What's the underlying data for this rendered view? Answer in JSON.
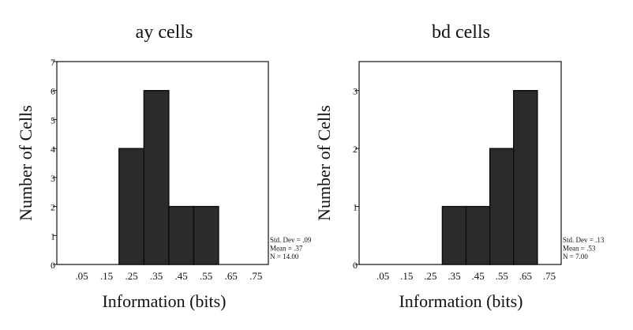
{
  "chart_data": [
    {
      "type": "bar",
      "title": "ay cells",
      "xlabel": "Information (bits)",
      "ylabel": "Number of Cells",
      "categories": [
        ".05",
        ".15",
        ".25",
        ".35",
        ".45",
        ".55",
        ".65",
        ".75"
      ],
      "values": [
        0,
        0,
        4,
        6,
        2,
        2,
        0,
        0
      ],
      "ylim": [
        0,
        7
      ],
      "yticks": [
        "0",
        "1",
        "2",
        "3",
        "4",
        "5",
        "6",
        "7"
      ],
      "bar_color": "#2b2b2b",
      "grid": false,
      "stats": [
        "Std. Dev = .09",
        "Mean = .37",
        "N = 14.00"
      ]
    },
    {
      "type": "bar",
      "title": "bd cells",
      "xlabel": "Information (bits)",
      "ylabel": "Number of Cells",
      "categories": [
        ".05",
        ".15",
        ".25",
        ".35",
        ".45",
        ".55",
        ".65",
        ".75"
      ],
      "values": [
        0,
        0,
        0,
        1,
        1,
        2,
        3,
        0
      ],
      "ylim": [
        0,
        3.5
      ],
      "yticks": [
        "0",
        "1",
        "2",
        "3"
      ],
      "bar_color": "#2b2b2b",
      "grid": false,
      "stats": [
        "Std. Dev = .13",
        "Mean = .53",
        "N = 7.00"
      ]
    }
  ]
}
